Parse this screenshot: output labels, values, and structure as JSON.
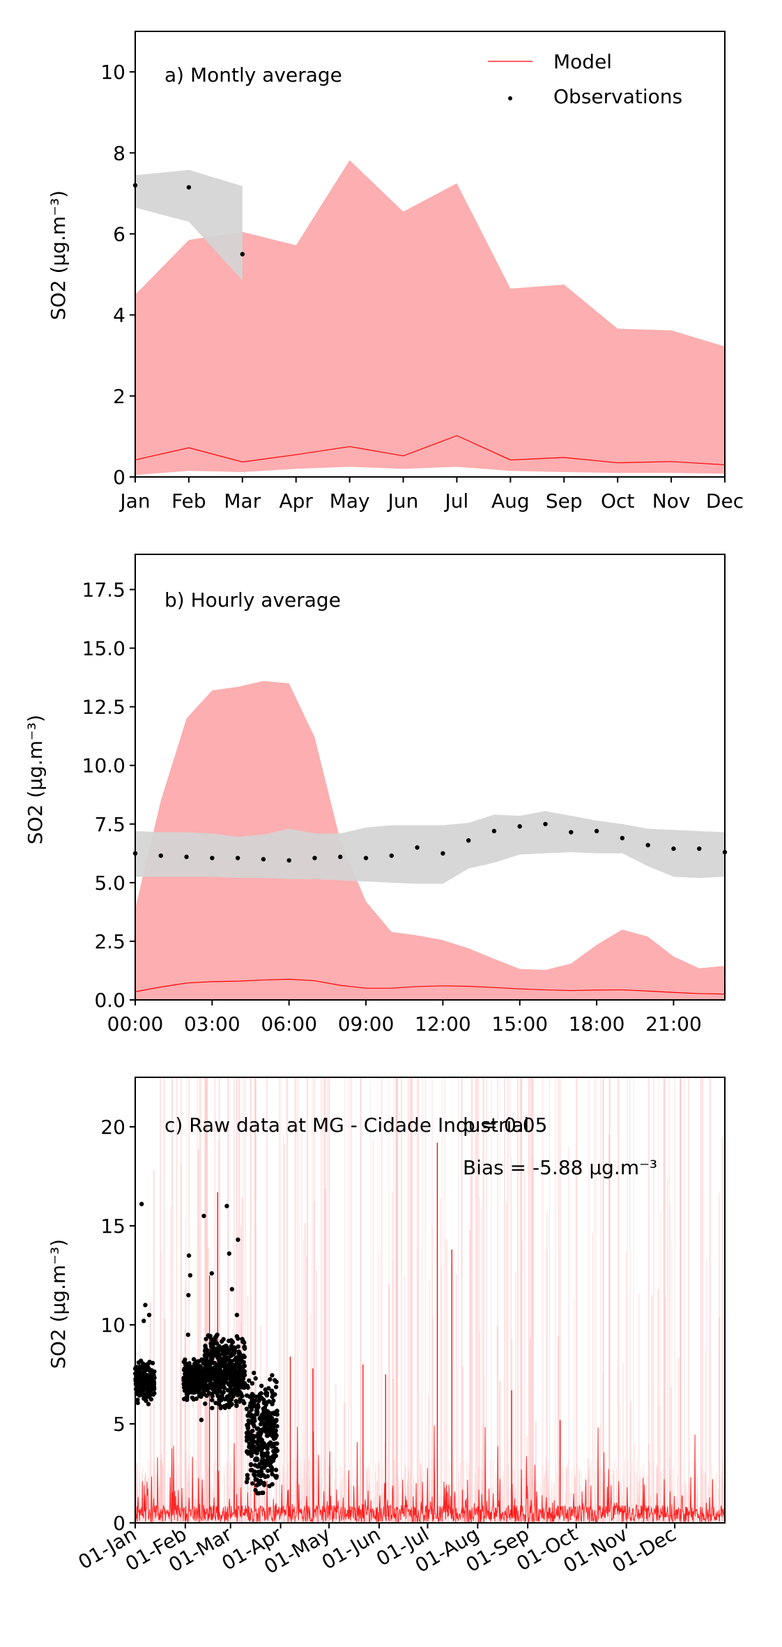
{
  "colors": {
    "model": "#ff0000",
    "model_band": "#fcaeb0",
    "obs": "#000000",
    "obs_band": "#d4d4d4"
  },
  "chart_data": [
    {
      "type": "line",
      "panel_label": "a) Montly average",
      "ylabel": "SO2 (μg.m⁻³)",
      "ylim": [
        0,
        11
      ],
      "yticks": [
        "0",
        "2",
        "4",
        "6",
        "8",
        "10"
      ],
      "categories": [
        "Jan",
        "Feb",
        "Mar",
        "Apr",
        "May",
        "Jun",
        "Jul",
        "Aug",
        "Sep",
        "Oct",
        "Nov",
        "Dec"
      ],
      "legend": {
        "position": "top-right",
        "entries": [
          "Model",
          "Observations"
        ]
      },
      "series": [
        {
          "name": "Model",
          "kind": "line",
          "values": [
            0.42,
            0.72,
            0.37,
            0.55,
            0.75,
            0.52,
            1.02,
            0.42,
            0.48,
            0.35,
            0.38,
            0.3
          ]
        },
        {
          "kind": "band",
          "color": "model_band",
          "upper": [
            4.5,
            5.85,
            6.05,
            5.72,
            7.82,
            6.55,
            7.25,
            4.65,
            4.75,
            3.66,
            3.62,
            3.22
          ],
          "lower": [
            0.05,
            0.15,
            0.12,
            0.2,
            0.25,
            0.2,
            0.25,
            0.15,
            0.12,
            0.1,
            0.1,
            0.08
          ]
        },
        {
          "name": "Observations",
          "kind": "scatter",
          "x": [
            "Jan",
            "Feb",
            "Mar"
          ],
          "values": [
            7.2,
            7.15,
            5.5
          ]
        },
        {
          "kind": "band",
          "color": "obs_band",
          "x": [
            "Jan",
            "Feb",
            "Mar"
          ],
          "upper": [
            7.45,
            7.58,
            7.18
          ],
          "lower": [
            6.65,
            6.3,
            4.85
          ]
        }
      ]
    },
    {
      "type": "line",
      "panel_label": "b) Hourly average",
      "ylabel": "SO2 (μg.m⁻³)",
      "ylim": [
        0,
        19
      ],
      "yticks": [
        "0.0",
        "2.5",
        "5.0",
        "7.5",
        "10.0",
        "12.5",
        "15.0",
        "17.5"
      ],
      "xticks": [
        "00:00",
        "03:00",
        "06:00",
        "09:00",
        "12:00",
        "15:00",
        "18:00",
        "21:00"
      ],
      "hours": [
        0,
        1,
        2,
        3,
        4,
        5,
        6,
        7,
        8,
        9,
        10,
        11,
        12,
        13,
        14,
        15,
        16,
        17,
        18,
        19,
        20,
        21,
        22,
        23
      ],
      "series": [
        {
          "name": "Model",
          "kind": "line",
          "values": [
            0.35,
            0.55,
            0.72,
            0.78,
            0.8,
            0.85,
            0.88,
            0.82,
            0.62,
            0.5,
            0.5,
            0.57,
            0.6,
            0.58,
            0.53,
            0.47,
            0.43,
            0.4,
            0.42,
            0.43,
            0.38,
            0.32,
            0.27,
            0.25
          ]
        },
        {
          "kind": "band",
          "color": "model_band",
          "upper": [
            3.9,
            8.5,
            12.0,
            13.2,
            13.35,
            13.6,
            13.5,
            11.2,
            6.8,
            4.2,
            2.9,
            2.75,
            2.55,
            2.2,
            1.75,
            1.32,
            1.28,
            1.55,
            2.35,
            3.0,
            2.7,
            1.85,
            1.35,
            1.45
          ],
          "lower": [
            0,
            0,
            0,
            0,
            0,
            0,
            0,
            0,
            0,
            0,
            0,
            0,
            0,
            0,
            0,
            0,
            0,
            0,
            0,
            0,
            0,
            0,
            0,
            0
          ]
        },
        {
          "name": "Observations",
          "kind": "scatter",
          "values": [
            6.25,
            6.15,
            6.1,
            6.05,
            6.05,
            6.0,
            5.95,
            6.05,
            6.1,
            6.05,
            6.15,
            6.5,
            6.25,
            6.8,
            7.2,
            7.4,
            7.5,
            7.15,
            7.2,
            6.9,
            6.6,
            6.45,
            6.45,
            6.3
          ]
        },
        {
          "kind": "band",
          "color": "obs_band",
          "upper": [
            7.2,
            7.15,
            7.15,
            7.1,
            6.95,
            7.05,
            7.3,
            7.1,
            7.1,
            7.35,
            7.45,
            7.45,
            7.45,
            7.55,
            7.9,
            7.85,
            8.05,
            7.85,
            7.65,
            7.5,
            7.3,
            7.25,
            7.2,
            7.15
          ],
          "lower": [
            5.25,
            5.25,
            5.25,
            5.25,
            5.2,
            5.2,
            5.15,
            5.15,
            5.1,
            5.05,
            5.0,
            4.95,
            4.95,
            5.6,
            5.85,
            6.2,
            6.25,
            6.3,
            6.25,
            6.25,
            5.7,
            5.25,
            5.2,
            5.25
          ]
        }
      ]
    },
    {
      "type": "line",
      "panel_label": "c) Raw data at MG - Cidade Industrial",
      "annotations": [
        "p = 0.05",
        "Bias = -5.88 μg.m⁻³"
      ],
      "ylabel": "SO2 (μg.m⁻³)",
      "ylim": [
        0,
        22.5
      ],
      "yticks": [
        "0",
        "5",
        "10",
        "15",
        "20"
      ],
      "xticks": [
        "01-Jan",
        "01-Feb",
        "01-Mar",
        "01-Apr",
        "01-May",
        "01-Jun",
        "01-Jul",
        "01-Aug",
        "01-Sep",
        "01-Oct",
        "01-Nov",
        "01-Dec"
      ],
      "xticks_doy": [
        0,
        31,
        59,
        90,
        120,
        151,
        181,
        212,
        243,
        273,
        304,
        334
      ],
      "xlim_doy": [
        0,
        365
      ],
      "series": [
        {
          "name": "Model",
          "kind": "line",
          "note": "hourly series, mostly 0–2 with spikes",
          "spikes_doy": [
            51,
            46,
            187,
            196,
            96,
            110,
            141,
            155,
            233,
            263
          ],
          "spikes_val": [
            16.7,
            12.5,
            19.2,
            13.8,
            8.4,
            7.8,
            8.0,
            7.5,
            6.7,
            5.2
          ]
        },
        {
          "name": "Observations",
          "kind": "scatter",
          "clusters": [
            {
              "doy": [
                0,
                12
              ],
              "range": [
                6.0,
                8.2
              ],
              "outliers": [
                11.0,
                10.5,
                16.1,
                10.2
              ]
            },
            {
              "doy": [
                30,
                43
              ],
              "range": [
                6.2,
                8.3
              ],
              "outliers": [
                15.5,
                13.5,
                12.5,
                11.5,
                9.5,
                5.2
              ]
            },
            {
              "doy": [
                43,
                68
              ],
              "range": [
                5.8,
                9.5
              ],
              "outliers": [
                16.0,
                14.3,
                13.6,
                12.6,
                11.8,
                10.5
              ]
            },
            {
              "doy": [
                69,
                88
              ],
              "range": [
                1.5,
                7.6
              ],
              "outliers": []
            }
          ]
        }
      ]
    }
  ]
}
